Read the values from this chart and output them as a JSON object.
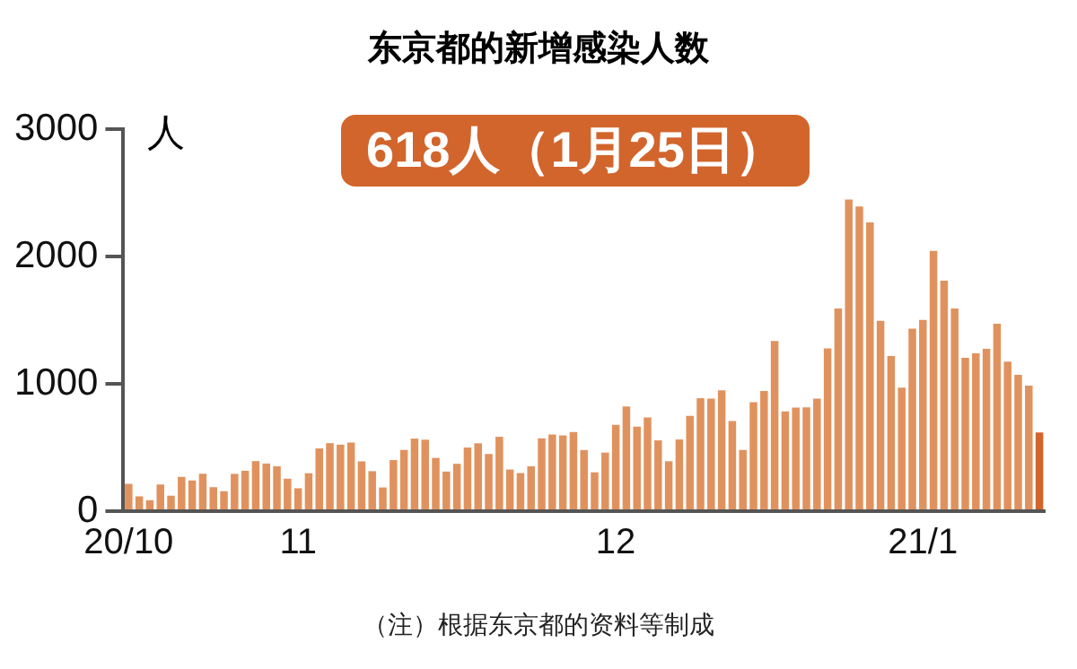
{
  "chart_data": {
    "type": "bar",
    "title": "东京都的新增感染人数",
    "ylabel": "人",
    "categories": [
      "20/10",
      null,
      null,
      null,
      null,
      null,
      null,
      null,
      null,
      null,
      null,
      null,
      null,
      null,
      null,
      null,
      "11",
      null,
      null,
      null,
      null,
      null,
      null,
      null,
      null,
      null,
      null,
      null,
      null,
      null,
      null,
      null,
      null,
      null,
      null,
      null,
      null,
      null,
      null,
      null,
      null,
      null,
      null,
      null,
      null,
      null,
      "12",
      null,
      null,
      null,
      null,
      null,
      null,
      null,
      null,
      null,
      null,
      null,
      null,
      null,
      null,
      null,
      null,
      null,
      null,
      null,
      null,
      null,
      null,
      null,
      null,
      null,
      null,
      null,
      null,
      "21/1",
      null,
      null,
      null,
      null,
      null,
      null,
      null,
      null,
      null,
      null,
      null
    ],
    "values": [
      215,
      116,
      87,
      209,
      122,
      269,
      242,
      294,
      189,
      157,
      293,
      317,
      393,
      374,
      352,
      255,
      180,
      298,
      493,
      534,
      522,
      539,
      391,
      314,
      186,
      401,
      481,
      570,
      561,
      418,
      311,
      372,
      500,
      533,
      449,
      584,
      327,
      299,
      352,
      572,
      602,
      595,
      621,
      480,
      305,
      460,
      678,
      822,
      664,
      736,
      556,
      392,
      563,
      748,
      888,
      884,
      949,
      708,
      481,
      856,
      944,
      1337,
      783,
      814,
      816,
      884,
      1278,
      1591,
      2447,
      2392,
      2268,
      1494,
      1219,
      970,
      1433,
      1502,
      2044,
      1809,
      1592,
      1204,
      1240,
      1274,
      1471,
      1175,
      1070,
      986,
      618
    ],
    "colors": [
      "#e0925e",
      "#e0925e",
      "#e0925e",
      "#e0925e",
      "#e0925e",
      "#e0925e",
      "#e0925e",
      "#e0925e",
      "#e0925e",
      "#e0925e",
      "#e0925e",
      "#e0925e",
      "#e0925e",
      "#e0925e",
      "#e0925e",
      "#e0925e",
      "#e0925e",
      "#e0925e",
      "#e0925e",
      "#e0925e",
      "#e0925e",
      "#e0925e",
      "#e0925e",
      "#e0925e",
      "#e0925e",
      "#e0925e",
      "#e0925e",
      "#e0925e",
      "#e0925e",
      "#e0925e",
      "#e0925e",
      "#e0925e",
      "#e0925e",
      "#e0925e",
      "#e0925e",
      "#e0925e",
      "#e0925e",
      "#e0925e",
      "#e0925e",
      "#e0925e",
      "#e0925e",
      "#e0925e",
      "#e0925e",
      "#e0925e",
      "#e0925e",
      "#e0925e",
      "#e0925e",
      "#e0925e",
      "#e0925e",
      "#e0925e",
      "#e0925e",
      "#e0925e",
      "#e0925e",
      "#e0925e",
      "#e0925e",
      "#e0925e",
      "#e0925e",
      "#e0925e",
      "#e0925e",
      "#e0925e",
      "#e0925e",
      "#e0925e",
      "#e0925e",
      "#e0925e",
      "#e0925e",
      "#e0925e",
      "#e0925e",
      "#e0925e",
      "#e0925e",
      "#e0925e",
      "#e0925e",
      "#e0925e",
      "#e0925e",
      "#e0925e",
      "#e0925e",
      "#e0925e",
      "#e0925e",
      "#e0925e",
      "#e0925e",
      "#e0925e",
      "#e0925e",
      "#e0925e",
      "#e0925e",
      "#e0925e",
      "#e0925e",
      "#e0925e",
      "#d2652c"
    ],
    "ylim": [
      0,
      3000
    ],
    "yticks": [
      0,
      1000,
      2000,
      3000
    ],
    "grid": false,
    "legend": false,
    "annotations": [
      "618人（1月25日）",
      "（注）根据东京都的资料等制成"
    ]
  }
}
